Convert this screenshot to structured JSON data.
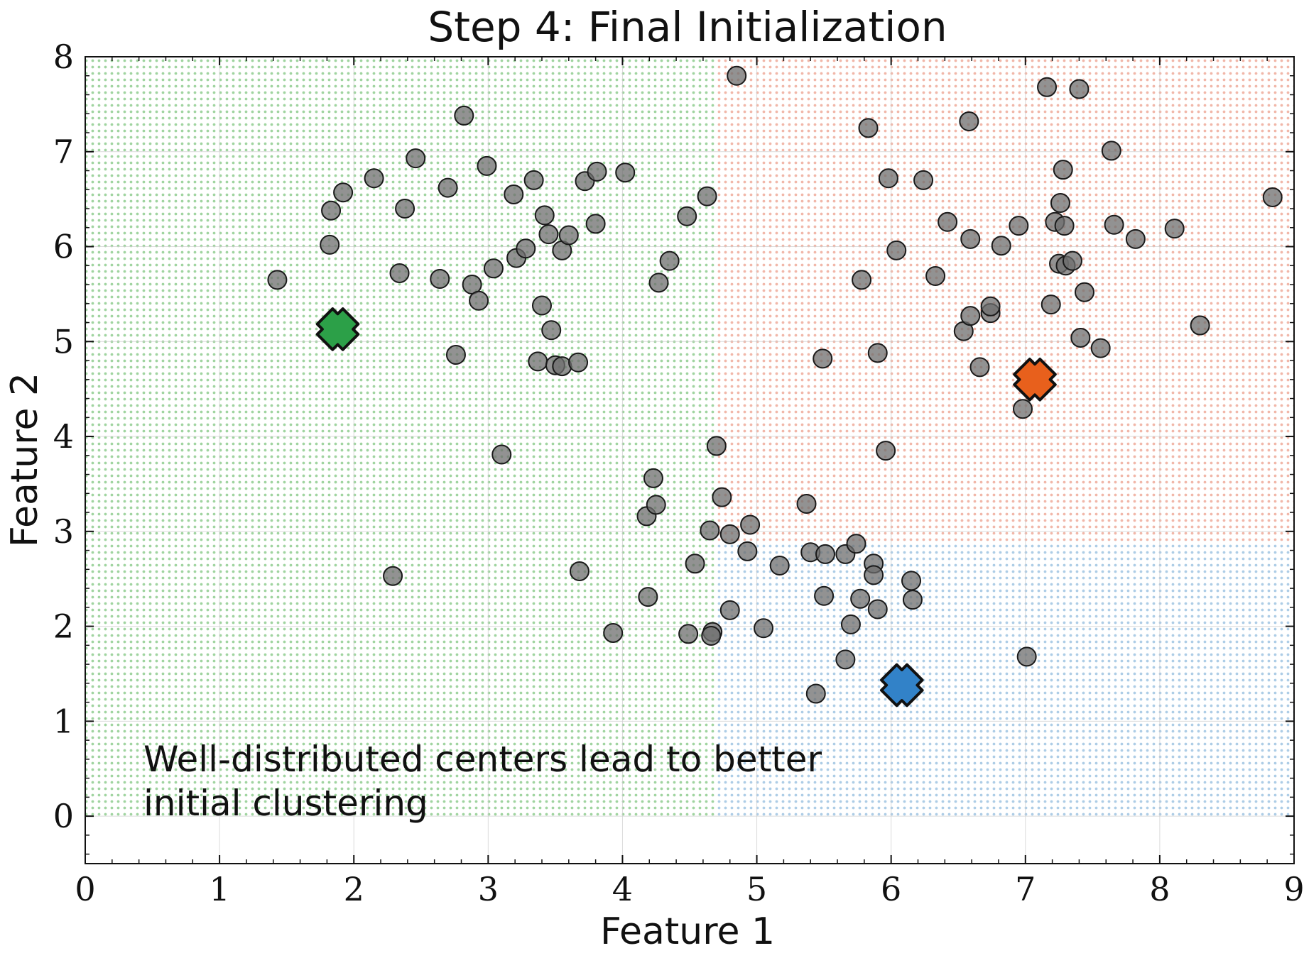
{
  "chart_data": {
    "type": "scatter",
    "title": "Step 4: Final Initialization",
    "xlabel": "Feature 1",
    "ylabel": "Feature 2",
    "xlim": [
      0,
      9
    ],
    "ylim": [
      -0.5,
      8
    ],
    "xticks": [
      "0",
      "1",
      "2",
      "3",
      "4",
      "5",
      "6",
      "7",
      "8",
      "9"
    ],
    "yticks": [
      "0",
      "1",
      "2",
      "3",
      "4",
      "5",
      "6",
      "7",
      "8"
    ],
    "grid": true,
    "annotation_lines": [
      "Well-distributed centers lead to better",
      "initial clustering"
    ],
    "regions": [
      {
        "name": "green-region",
        "color": "#2ca02c",
        "x": [
          0,
          4.7
        ],
        "y": [
          0,
          8
        ]
      },
      {
        "name": "red-region",
        "color": "#e06040",
        "x": [
          4.7,
          9
        ],
        "y": [
          2.9,
          8
        ]
      },
      {
        "name": "blue-region",
        "color": "#4a90c8",
        "x": [
          4.7,
          9
        ],
        "y": [
          0,
          2.9
        ]
      }
    ],
    "centers": [
      {
        "name": "green-center",
        "x": 1.88,
        "y": 5.13,
        "color": "#2ca048"
      },
      {
        "name": "orange-center",
        "x": 7.07,
        "y": 4.6,
        "color": "#e8601c"
      },
      {
        "name": "blue-center",
        "x": 6.08,
        "y": 1.38,
        "color": "#3282c8"
      }
    ],
    "points": [
      [
        1.43,
        5.65
      ],
      [
        1.83,
        6.38
      ],
      [
        1.82,
        6.02
      ],
      [
        1.92,
        6.57
      ],
      [
        2.15,
        6.72
      ],
      [
        2.34,
        5.72
      ],
      [
        2.38,
        6.4
      ],
      [
        2.46,
        6.93
      ],
      [
        2.64,
        5.66
      ],
      [
        2.7,
        6.62
      ],
      [
        2.76,
        4.86
      ],
      [
        2.82,
        7.38
      ],
      [
        2.88,
        5.6
      ],
      [
        2.93,
        5.43
      ],
      [
        2.99,
        6.85
      ],
      [
        3.04,
        5.77
      ],
      [
        3.19,
        6.55
      ],
      [
        3.21,
        5.88
      ],
      [
        3.28,
        5.98
      ],
      [
        3.34,
        6.7
      ],
      [
        3.37,
        4.79
      ],
      [
        3.4,
        5.38
      ],
      [
        3.42,
        6.33
      ],
      [
        3.45,
        6.13
      ],
      [
        3.47,
        5.12
      ],
      [
        3.5,
        4.75
      ],
      [
        3.55,
        4.74
      ],
      [
        3.55,
        5.96
      ],
      [
        3.6,
        6.12
      ],
      [
        3.67,
        4.78
      ],
      [
        3.72,
        6.69
      ],
      [
        3.8,
        6.24
      ],
      [
        3.81,
        6.79
      ],
      [
        4.02,
        6.78
      ],
      [
        4.27,
        5.62
      ],
      [
        4.35,
        5.85
      ],
      [
        4.48,
        6.32
      ],
      [
        4.63,
        6.53
      ],
      [
        4.85,
        7.8
      ],
      [
        3.1,
        3.81
      ],
      [
        2.29,
        2.53
      ],
      [
        3.68,
        2.58
      ],
      [
        3.93,
        1.93
      ],
      [
        4.18,
        3.16
      ],
      [
        4.19,
        2.31
      ],
      [
        4.23,
        3.56
      ],
      [
        4.25,
        3.28
      ],
      [
        4.49,
        1.92
      ],
      [
        4.54,
        2.66
      ],
      [
        4.65,
        3.01
      ],
      [
        4.67,
        1.94
      ],
      [
        4.66,
        1.9
      ],
      [
        4.7,
        3.9
      ],
      [
        4.74,
        3.36
      ],
      [
        4.8,
        2.97
      ],
      [
        4.8,
        2.17
      ],
      [
        4.93,
        2.79
      ],
      [
        4.95,
        3.07
      ],
      [
        5.05,
        1.98
      ],
      [
        5.17,
        2.64
      ],
      [
        5.37,
        3.29
      ],
      [
        5.4,
        2.78
      ],
      [
        5.44,
        1.29
      ],
      [
        5.49,
        4.82
      ],
      [
        5.5,
        2.32
      ],
      [
        5.51,
        2.76
      ],
      [
        5.66,
        2.76
      ],
      [
        5.66,
        1.65
      ],
      [
        5.7,
        2.02
      ],
      [
        5.74,
        2.87
      ],
      [
        5.77,
        2.29
      ],
      [
        5.78,
        5.65
      ],
      [
        5.83,
        7.25
      ],
      [
        5.87,
        2.66
      ],
      [
        5.87,
        2.54
      ],
      [
        5.9,
        4.88
      ],
      [
        5.9,
        2.18
      ],
      [
        5.96,
        3.85
      ],
      [
        5.98,
        6.72
      ],
      [
        6.04,
        5.96
      ],
      [
        6.15,
        2.48
      ],
      [
        6.16,
        2.28
      ],
      [
        6.24,
        6.7
      ],
      [
        6.33,
        5.69
      ],
      [
        6.42,
        6.26
      ],
      [
        6.54,
        5.11
      ],
      [
        6.58,
        7.32
      ],
      [
        6.59,
        6.08
      ],
      [
        6.59,
        5.27
      ],
      [
        6.66,
        4.73
      ],
      [
        6.74,
        5.3
      ],
      [
        6.74,
        5.37
      ],
      [
        6.82,
        6.01
      ],
      [
        6.95,
        6.22
      ],
      [
        6.98,
        4.29
      ],
      [
        7.01,
        1.68
      ],
      [
        7.16,
        7.68
      ],
      [
        7.19,
        5.39
      ],
      [
        7.22,
        6.26
      ],
      [
        7.25,
        5.82
      ],
      [
        7.26,
        6.46
      ],
      [
        7.28,
        6.81
      ],
      [
        7.29,
        6.22
      ],
      [
        7.3,
        5.8
      ],
      [
        7.35,
        5.85
      ],
      [
        7.4,
        7.66
      ],
      [
        7.41,
        5.04
      ],
      [
        7.44,
        5.52
      ],
      [
        7.56,
        4.93
      ],
      [
        7.64,
        7.01
      ],
      [
        7.66,
        6.23
      ],
      [
        7.82,
        6.08
      ],
      [
        8.11,
        6.19
      ],
      [
        8.3,
        5.17
      ],
      [
        8.84,
        6.52
      ]
    ]
  }
}
